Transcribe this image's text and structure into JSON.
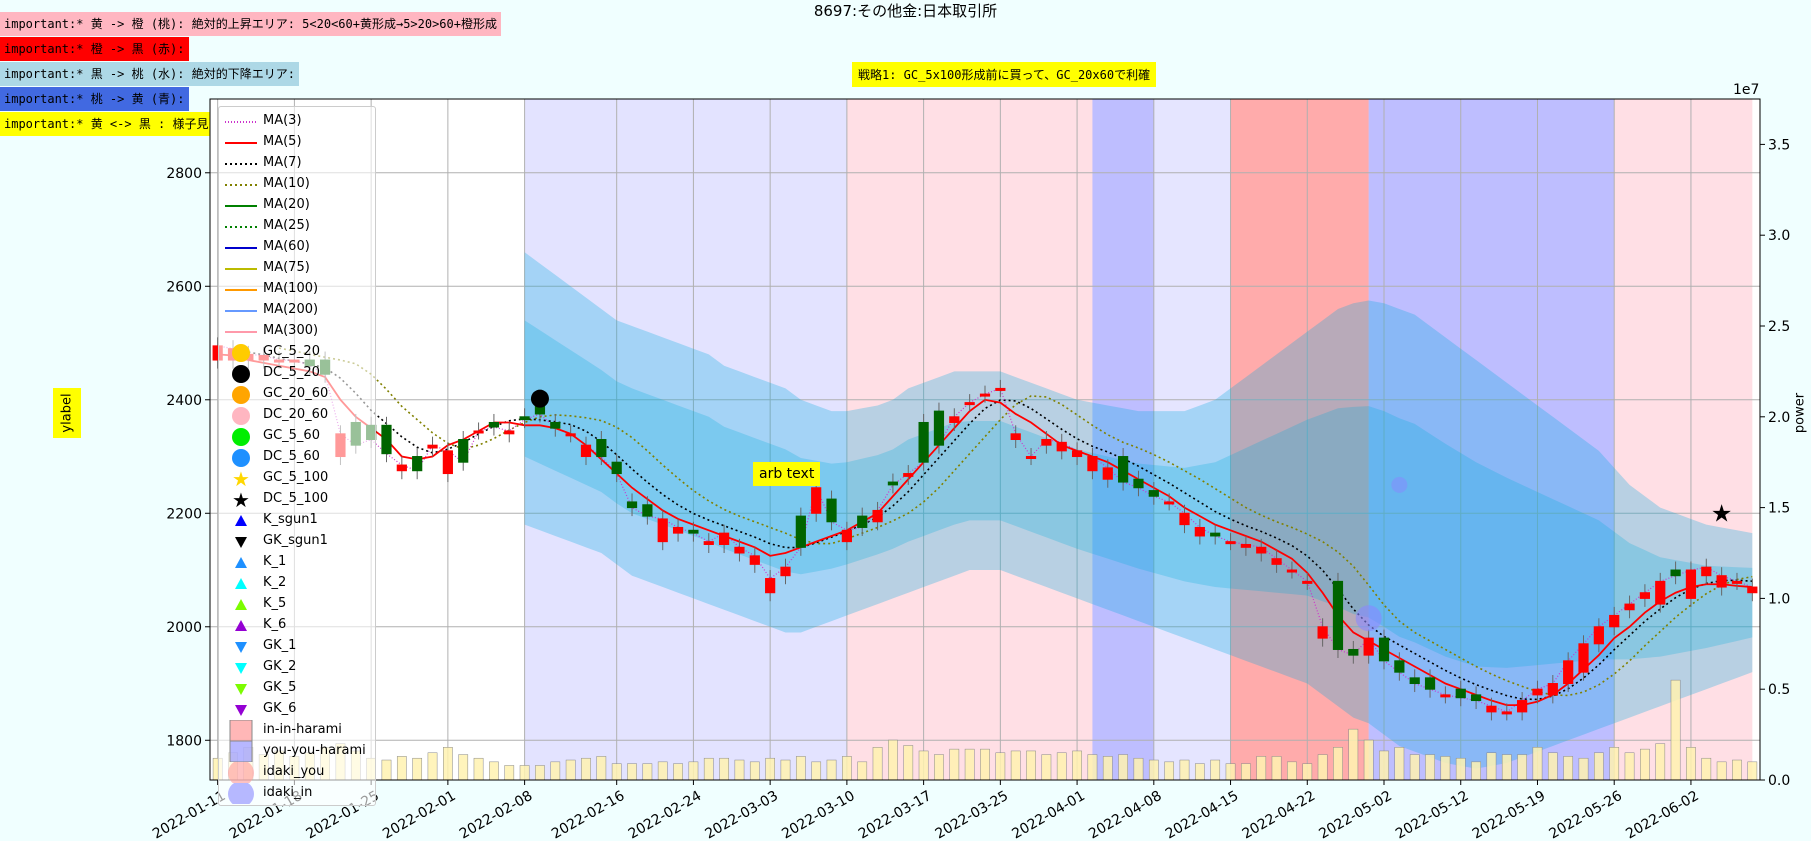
{
  "title": "8697:その他金:日本取引所",
  "notes": [
    {
      "text": "important:* 黄 -> 橙 (桃): 絶対的上昇エリア: 5<20<60+黄形成→5>20>60+橙形成",
      "bg": "#ffb6c1"
    },
    {
      "text": "important:* 橙 -> 黒 (赤):",
      "bg": "#ff0000"
    },
    {
      "text": "important:* 黒 -> 桃 (水): 絶対的下降エリア:",
      "bg": "#add8e6"
    },
    {
      "text": "important:* 桃 -> 黄 (青):",
      "bg": "#4169e1"
    },
    {
      "text": "important:* 黄 <-> 黒 : 様子見:",
      "bg": "#ffff00"
    }
  ],
  "strategy_label": "戦略1: GC_5x100形成前に買って、GC_20x60で利確",
  "arb_text": "arb text",
  "ylabel": "ylabel",
  "y2label": "power",
  "y2_exponent": "1e7",
  "colors": {
    "up": "#ff0000",
    "down": "#006400",
    "ma5": "#ff0000",
    "band": "#00aadd",
    "zone_pink": "#ffc0cb",
    "zone_red": "#ff6666",
    "zone_blue": "#4444ff",
    "zone_lavender": "#ccccff",
    "volume": "#fff2b0"
  },
  "chart_data": {
    "type": "candlestick",
    "ylim": [
      1730,
      2930
    ],
    "y2lim": [
      0,
      37500000
    ],
    "yticks": [
      1800,
      2000,
      2200,
      2400,
      2600,
      2800
    ],
    "y2ticks": [
      "0.0",
      "0.5",
      "1.0",
      "1.5",
      "2.0",
      "2.5",
      "3.0",
      "3.5"
    ],
    "y2tick_values": [
      0,
      5000000,
      10000000,
      15000000,
      20000000,
      25000000,
      30000000,
      35000000
    ],
    "xtick_labels": [
      "2022-01-11",
      "2022-01-18",
      "2022-01-25",
      "2022-02-01",
      "2022-02-08",
      "2022-02-16",
      "2022-02-24",
      "2022-03-03",
      "2022-03-10",
      "2022-03-17",
      "2022-03-25",
      "2022-04-01",
      "2022-04-08",
      "2022-04-15",
      "2022-04-22",
      "2022-05-02",
      "2022-05-12",
      "2022-05-19",
      "2022-05-26",
      "2022-06-02"
    ],
    "xtick_index": [
      0,
      5,
      10,
      15,
      20,
      26,
      31,
      36,
      41,
      46,
      51,
      56,
      61,
      66,
      71,
      76,
      81,
      86,
      91,
      96
    ],
    "n_bars": 101,
    "grid": true,
    "legend": "upper-left",
    "close": [
      2495,
      2490,
      2480,
      2478,
      2470,
      2470,
      2460,
      2445,
      2340,
      2320,
      2330,
      2305,
      2285,
      2275,
      2320,
      2310,
      2290,
      2345,
      2352,
      2345,
      2365,
      2375,
      2350,
      2340,
      2320,
      2300,
      2270,
      2210,
      2195,
      2190,
      2175,
      2165,
      2150,
      2165,
      2140,
      2125,
      2085,
      2105,
      2140,
      2245,
      2185,
      2170,
      2175,
      2205,
      2250,
      2270,
      2290,
      2320,
      2370,
      2395,
      2410,
      2420,
      2340,
      2300,
      2330,
      2325,
      2310,
      2300,
      2280,
      2255,
      2245,
      2230,
      2220,
      2200,
      2175,
      2160,
      2150,
      2145,
      2140,
      2120,
      2100,
      2080,
      2000,
      1960,
      1950,
      1980,
      1940,
      1920,
      1900,
      1890,
      1880,
      1875,
      1870,
      1860,
      1850,
      1870,
      1890,
      1900,
      1940,
      1970,
      2000,
      2020,
      2040,
      2060,
      2080,
      2090,
      2100,
      2105,
      2090,
      2080,
      2070
    ],
    "open": [
      2470,
      2470,
      2470,
      2470,
      2470,
      2470,
      2470,
      2470,
      2300,
      2360,
      2355,
      2355,
      2275,
      2300,
      2315,
      2270,
      2330,
      2345,
      2360,
      2340,
      2370,
      2390,
      2360,
      2340,
      2300,
      2330,
      2290,
      2220,
      2215,
      2150,
      2165,
      2170,
      2145,
      2145,
      2130,
      2110,
      2060,
      2090,
      2195,
      2200,
      2225,
      2150,
      2195,
      2185,
      2255,
      2265,
      2360,
      2380,
      2360,
      2395,
      2410,
      2420,
      2330,
      2300,
      2320,
      2310,
      2300,
      2275,
      2260,
      2300,
      2260,
      2240,
      2220,
      2180,
      2160,
      2165,
      2150,
      2140,
      2130,
      2110,
      2100,
      2080,
      1980,
      2080,
      1960,
      1950,
      1980,
      1940,
      1910,
      1910,
      1880,
      1890,
      1880,
      1850,
      1850,
      1850,
      1880,
      1880,
      1900,
      1920,
      1970,
      2000,
      2030,
      2050,
      2040,
      2100,
      2050,
      2090,
      2070,
      2080,
      2060
    ],
    "ma5": [
      2480,
      2478,
      2470,
      2465,
      2460,
      2455,
      2450,
      2440,
      2400,
      2370,
      2350,
      2330,
      2300,
      2295,
      2300,
      2320,
      2330,
      2345,
      2360,
      2360,
      2355,
      2355,
      2350,
      2340,
      2320,
      2295,
      2270,
      2245,
      2225,
      2205,
      2190,
      2180,
      2170,
      2160,
      2150,
      2140,
      2125,
      2130,
      2140,
      2150,
      2160,
      2170,
      2185,
      2200,
      2230,
      2260,
      2290,
      2320,
      2350,
      2380,
      2400,
      2395,
      2375,
      2360,
      2340,
      2320,
      2310,
      2300,
      2290,
      2275,
      2260,
      2245,
      2230,
      2210,
      2195,
      2180,
      2170,
      2160,
      2150,
      2135,
      2120,
      2095,
      2060,
      2020,
      1990,
      1975,
      1960,
      1945,
      1930,
      1915,
      1900,
      1890,
      1880,
      1870,
      1862,
      1862,
      1868,
      1880,
      1900,
      1925,
      1950,
      1980,
      2000,
      2025,
      2045,
      2060,
      2070,
      2075,
      2075,
      2072,
      2070
    ],
    "volume": [
      1200000,
      1500000,
      1800000,
      1400000,
      1600000,
      1300000,
      1500000,
      1800000,
      2000000,
      1600000,
      1200000,
      1100000,
      1300000,
      1200000,
      1500000,
      1800000,
      1400000,
      1200000,
      1000000,
      800000,
      800000,
      800000,
      1000000,
      1100000,
      1200000,
      1300000,
      900000,
      900000,
      900000,
      1000000,
      900000,
      1000000,
      1200000,
      1200000,
      1100000,
      1000000,
      1200000,
      1100000,
      1300000,
      1000000,
      1100000,
      1300000,
      1000000,
      1800000,
      2200000,
      1900000,
      1600000,
      1400000,
      1700000,
      1700000,
      1700000,
      1500000,
      1600000,
      1600000,
      1400000,
      1500000,
      1600000,
      1400000,
      1300000,
      1400000,
      1200000,
      1100000,
      1000000,
      1100000,
      900000,
      1100000,
      900000,
      900000,
      1300000,
      1300000,
      1000000,
      900000,
      1400000,
      1800000,
      2800000,
      2200000,
      1600000,
      1800000,
      1400000,
      1400000,
      1300000,
      1200000,
      1000000,
      1500000,
      1400000,
      1400000,
      1800000,
      1500000,
      1300000,
      1200000,
      1500000,
      1800000,
      1500000,
      1700000,
      2000000,
      5500000,
      1800000,
      1200000,
      1000000,
      1100000,
      1000000
    ],
    "band_upper": [
      null,
      null,
      null,
      null,
      null,
      null,
      null,
      null,
      null,
      null,
      null,
      null,
      null,
      null,
      null,
      null,
      null,
      null,
      null,
      null,
      2660,
      2640,
      2620,
      2600,
      2580,
      2560,
      2540,
      2530,
      2520,
      2510,
      2500,
      2490,
      2480,
      2460,
      2450,
      2440,
      2430,
      2420,
      2400,
      2390,
      2380,
      2380,
      2385,
      2390,
      2400,
      2420,
      2430,
      2440,
      2450,
      2450,
      2450,
      2450,
      2440,
      2430,
      2420,
      2410,
      2400,
      2395,
      2390,
      2385,
      2380,
      2380,
      2380,
      2380,
      2390,
      2400,
      2420,
      2440,
      2460,
      2480,
      2500,
      2520,
      2540,
      2560,
      2570,
      2575,
      2570,
      2560,
      2550,
      2530,
      2510,
      2490,
      2470,
      2450,
      2430,
      2410,
      2390,
      2370,
      2350,
      2330,
      2310,
      2280,
      2250,
      2230,
      2210,
      2200,
      2190,
      2180,
      2175,
      2170,
      2165
    ],
    "band_lower": [
      null,
      null,
      null,
      null,
      null,
      null,
      null,
      null,
      null,
      null,
      null,
      null,
      null,
      null,
      null,
      null,
      null,
      null,
      null,
      null,
      2180,
      2170,
      2160,
      2150,
      2140,
      2130,
      2110,
      2090,
      2080,
      2070,
      2060,
      2050,
      2040,
      2030,
      2020,
      2010,
      2000,
      1990,
      1990,
      2000,
      2010,
      2020,
      2030,
      2040,
      2050,
      2060,
      2070,
      2080,
      2090,
      2100,
      2100,
      2100,
      2090,
      2080,
      2070,
      2060,
      2050,
      2040,
      2030,
      2020,
      2010,
      2000,
      1990,
      1980,
      1970,
      1960,
      1950,
      1940,
      1930,
      1920,
      1910,
      1900,
      1880,
      1860,
      1840,
      1830,
      1810,
      1790,
      1780,
      1770,
      1760,
      1755,
      1750,
      1755,
      1760,
      1770,
      1780,
      1790,
      1800,
      1810,
      1820,
      1830,
      1840,
      1850,
      1860,
      1870,
      1880,
      1890,
      1900,
      1910,
      1920
    ]
  },
  "legend_items": [
    {
      "label": "MA(3)",
      "kind": "line",
      "color": "#cc33cc",
      "dash": "1,2"
    },
    {
      "label": "MA(5)",
      "kind": "line",
      "color": "#ff0000",
      "dash": ""
    },
    {
      "label": "MA(7)",
      "kind": "line",
      "color": "#000000",
      "dash": "2,3"
    },
    {
      "label": "MA(10)",
      "kind": "line",
      "color": "#808000",
      "dash": "2,3"
    },
    {
      "label": "MA(20)",
      "kind": "line",
      "color": "#008000",
      "dash": ""
    },
    {
      "label": "MA(25)",
      "kind": "line",
      "color": "#008000",
      "dash": "2,3"
    },
    {
      "label": "MA(60)",
      "kind": "line",
      "color": "#0000cc",
      "dash": ""
    },
    {
      "label": "MA(75)",
      "kind": "line",
      "color": "#bbbb00",
      "dash": ""
    },
    {
      "label": "MA(100)",
      "kind": "line",
      "color": "#ff9900",
      "dash": ""
    },
    {
      "label": "MA(200)",
      "kind": "line",
      "color": "#6699ff",
      "dash": ""
    },
    {
      "label": "MA(300)",
      "kind": "line",
      "color": "#ff99aa",
      "dash": ""
    },
    {
      "label": "GC_5_20",
      "kind": "circle",
      "color": "#ffcc00"
    },
    {
      "label": "DC_5_20",
      "kind": "circle",
      "color": "#000000"
    },
    {
      "label": "GC_20_60",
      "kind": "circle",
      "color": "#ffa500"
    },
    {
      "label": "DC_20_60",
      "kind": "circle",
      "color": "#ffb6c1"
    },
    {
      "label": "GC_5_60",
      "kind": "circle",
      "color": "#00ee00"
    },
    {
      "label": "DC_5_60",
      "kind": "circle",
      "color": "#1e90ff"
    },
    {
      "label": "GC_5_100",
      "kind": "star",
      "color": "#ffd700"
    },
    {
      "label": "DC_5_100",
      "kind": "star",
      "color": "#000000"
    },
    {
      "label": "K_sgun1",
      "kind": "tri-up",
      "color": "#0000ff"
    },
    {
      "label": "GK_sgun1",
      "kind": "tri-down",
      "color": "#000000"
    },
    {
      "label": "K_1",
      "kind": "tri-up",
      "color": "#1e90ff"
    },
    {
      "label": "K_2",
      "kind": "tri-up",
      "color": "#00ffff"
    },
    {
      "label": "K_5",
      "kind": "tri-up",
      "color": "#7cfc00"
    },
    {
      "label": "K_6",
      "kind": "tri-up",
      "color": "#9400d3"
    },
    {
      "label": "GK_1",
      "kind": "tri-down",
      "color": "#1e90ff"
    },
    {
      "label": "GK_2",
      "kind": "tri-down",
      "color": "#00ffff"
    },
    {
      "label": "GK_5",
      "kind": "tri-down",
      "color": "#7cfc00"
    },
    {
      "label": "GK_6",
      "kind": "tri-down",
      "color": "#9400d3"
    },
    {
      "label": "in-in-harami",
      "kind": "square",
      "color": "#ff9999"
    },
    {
      "label": "you-you-harami",
      "kind": "square",
      "color": "#9999ff"
    },
    {
      "label": "idaki_you",
      "kind": "bigcircle",
      "color": "#ff9999"
    },
    {
      "label": "idaki_in",
      "kind": "bigcircle",
      "color": "#8888ff"
    }
  ],
  "zones": [
    {
      "from": 20.5,
      "to": 41.5,
      "color": "#ccccff",
      "alpha": 0.55
    },
    {
      "from": 41.5,
      "to": 57.5,
      "color": "#ffc0cb",
      "alpha": 0.5
    },
    {
      "from": 57.5,
      "to": 61.5,
      "color": "#4444ff",
      "alpha": 0.35
    },
    {
      "from": 61.5,
      "to": 66.5,
      "color": "#ccccff",
      "alpha": 0.5
    },
    {
      "from": 66.5,
      "to": 75.5,
      "color": "#ff6666",
      "alpha": 0.55
    },
    {
      "from": 75.5,
      "to": 91.5,
      "color": "#4444ff",
      "alpha": 0.35
    },
    {
      "from": 91.5,
      "to": 100.5,
      "color": "#ffc0cb",
      "alpha": 0.5
    }
  ]
}
